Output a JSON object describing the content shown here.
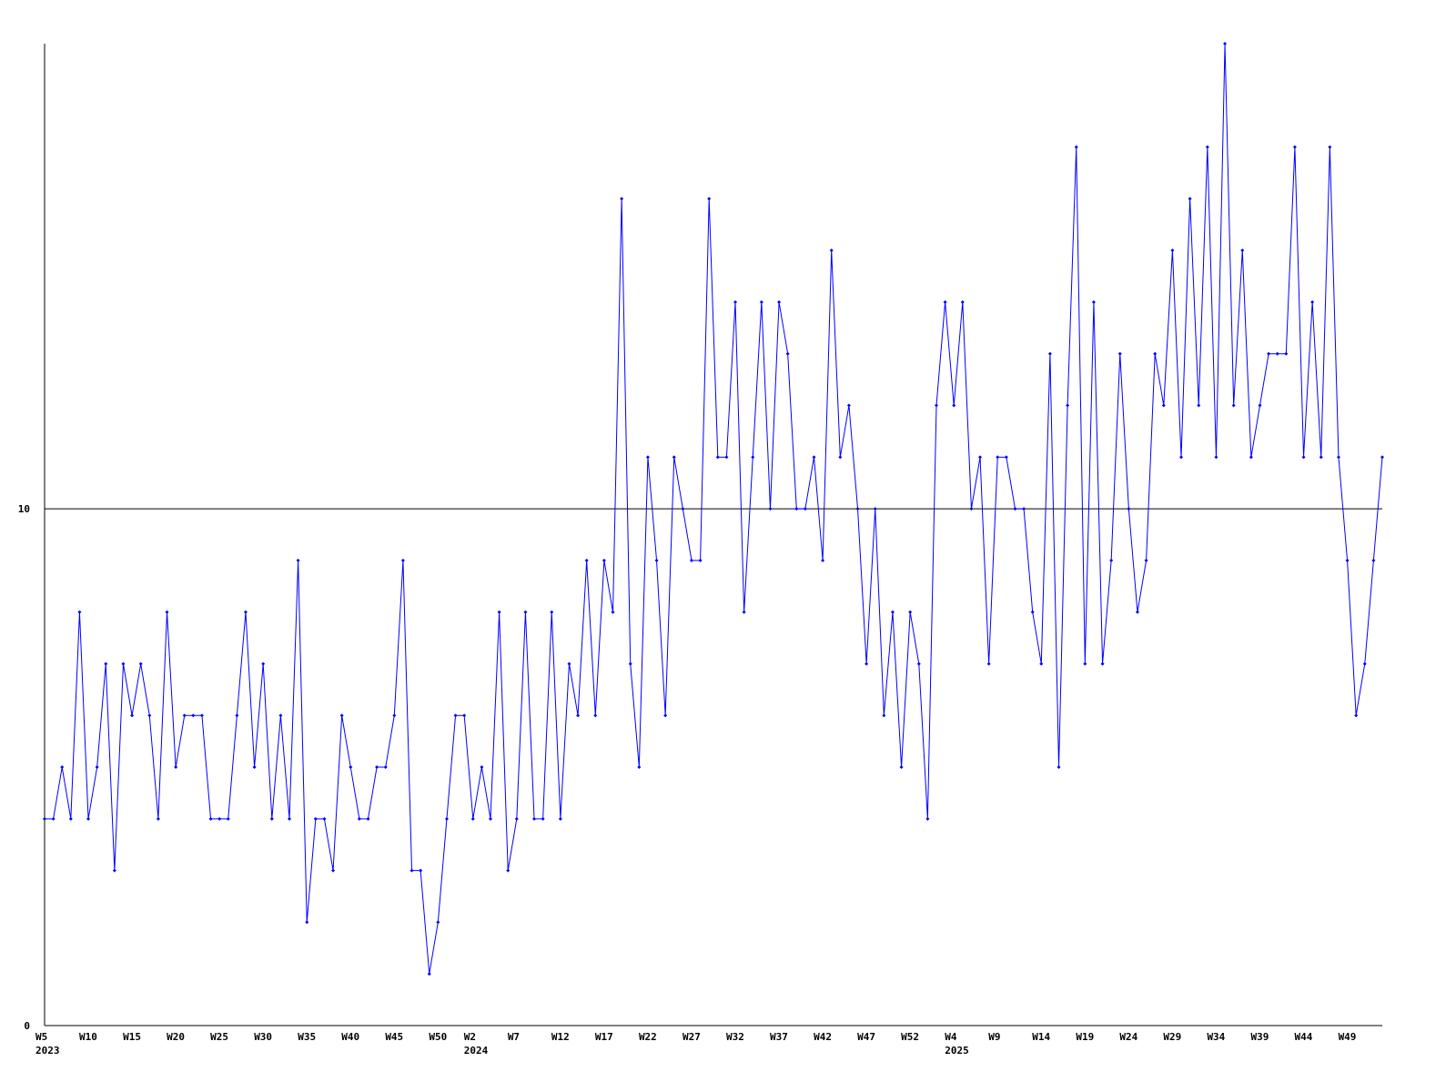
{
  "chart_data": {
    "type": "line",
    "categories": [
      "W5",
      null,
      null,
      null,
      null,
      "W10",
      null,
      null,
      null,
      null,
      "W15",
      null,
      null,
      null,
      null,
      "W20",
      null,
      null,
      null,
      null,
      "W25",
      null,
      null,
      null,
      null,
      "W30",
      null,
      null,
      null,
      null,
      "W35",
      null,
      null,
      null,
      null,
      "W40",
      null,
      null,
      null,
      null,
      "W45",
      null,
      null,
      null,
      null,
      "W50",
      null,
      null,
      null,
      "W2",
      null,
      null,
      null,
      null,
      "W7",
      null,
      null,
      null,
      null,
      "W12",
      null,
      null,
      null,
      null,
      "W17",
      null,
      null,
      null,
      null,
      "W22",
      null,
      null,
      null,
      null,
      "W27",
      null,
      null,
      null,
      null,
      "W32",
      null,
      null,
      null,
      null,
      "W37",
      null,
      null,
      null,
      null,
      "W42",
      null,
      null,
      null,
      null,
      "W47",
      null,
      null,
      null,
      null,
      "W52",
      null,
      null,
      null,
      null,
      "W4",
      null,
      null,
      null,
      null,
      "W9",
      null,
      null,
      null,
      null,
      "W14",
      null,
      null,
      null,
      null,
      "W19",
      null,
      null,
      null,
      null,
      "W24",
      null,
      null,
      null,
      null,
      "W29",
      null,
      null,
      null,
      null,
      "W34",
      null,
      null,
      null,
      null,
      "W39",
      null,
      null,
      null,
      null,
      "W44",
      null,
      null,
      null,
      null,
      "W49",
      null,
      null,
      null,
      null
    ],
    "category_years": [
      "2023",
      null,
      null,
      null,
      null,
      null,
      null,
      null,
      null,
      null,
      null,
      null,
      null,
      null,
      null,
      null,
      null,
      null,
      null,
      null,
      null,
      null,
      null,
      null,
      null,
      null,
      null,
      null,
      null,
      null,
      null,
      null,
      null,
      null,
      null,
      null,
      null,
      null,
      null,
      null,
      null,
      null,
      null,
      null,
      null,
      null,
      null,
      null,
      null,
      "2024",
      null,
      null,
      null,
      null,
      null,
      null,
      null,
      null,
      null,
      null,
      null,
      null,
      null,
      null,
      null,
      null,
      null,
      null,
      null,
      null,
      null,
      null,
      null,
      null,
      null,
      null,
      null,
      null,
      null,
      null,
      null,
      null,
      null,
      null,
      null,
      null,
      null,
      null,
      null,
      null,
      null,
      null,
      null,
      null,
      null,
      null,
      null,
      null,
      null,
      null,
      null,
      null,
      null,
      null,
      "2025",
      null,
      null,
      null,
      null,
      null,
      null,
      null,
      null,
      null,
      null,
      null,
      null,
      null,
      null,
      null,
      null,
      null,
      null,
      null,
      null,
      null,
      null,
      null,
      null,
      null,
      null,
      null,
      null,
      null,
      null,
      null,
      null,
      null,
      null,
      null,
      null,
      null,
      null,
      null,
      null,
      null,
      null,
      null,
      null,
      null,
      null,
      null,
      null,
      null
    ],
    "values": [
      4,
      4,
      5,
      4,
      8,
      4,
      5,
      7,
      3,
      7,
      6,
      7,
      6,
      4,
      8,
      5,
      6,
      6,
      6,
      4,
      4,
      4,
      6,
      8,
      5,
      7,
      4,
      6,
      4,
      9,
      2,
      4,
      4,
      3,
      6,
      5,
      4,
      4,
      5,
      5,
      6,
      9,
      3,
      3,
      1,
      2,
      4,
      6,
      6,
      4,
      5,
      4,
      8,
      3,
      4,
      8,
      4,
      4,
      8,
      4,
      7,
      6,
      9,
      6,
      9,
      8,
      16,
      7,
      5,
      11,
      9,
      6,
      11,
      10,
      9,
      9,
      16,
      11,
      11,
      14,
      8,
      11,
      14,
      10,
      14,
      13,
      10,
      10,
      11,
      9,
      15,
      11,
      12,
      10,
      7,
      10,
      6,
      8,
      5,
      8,
      7,
      4,
      12,
      14,
      12,
      14,
      10,
      11,
      7,
      11,
      11,
      10,
      10,
      8,
      7,
      13,
      5,
      12,
      17,
      7,
      14,
      7,
      9,
      13,
      10,
      8,
      9,
      13,
      12,
      15,
      11,
      16,
      12,
      17,
      11,
      19,
      12,
      15,
      11,
      12,
      13,
      13,
      13,
      17,
      11,
      14,
      11,
      17,
      11,
      9,
      6,
      7,
      9,
      11
    ],
    "color": "#0000ff",
    "ylim": [
      0,
      19
    ],
    "yticks": [
      0,
      10
    ],
    "grid": true
  }
}
